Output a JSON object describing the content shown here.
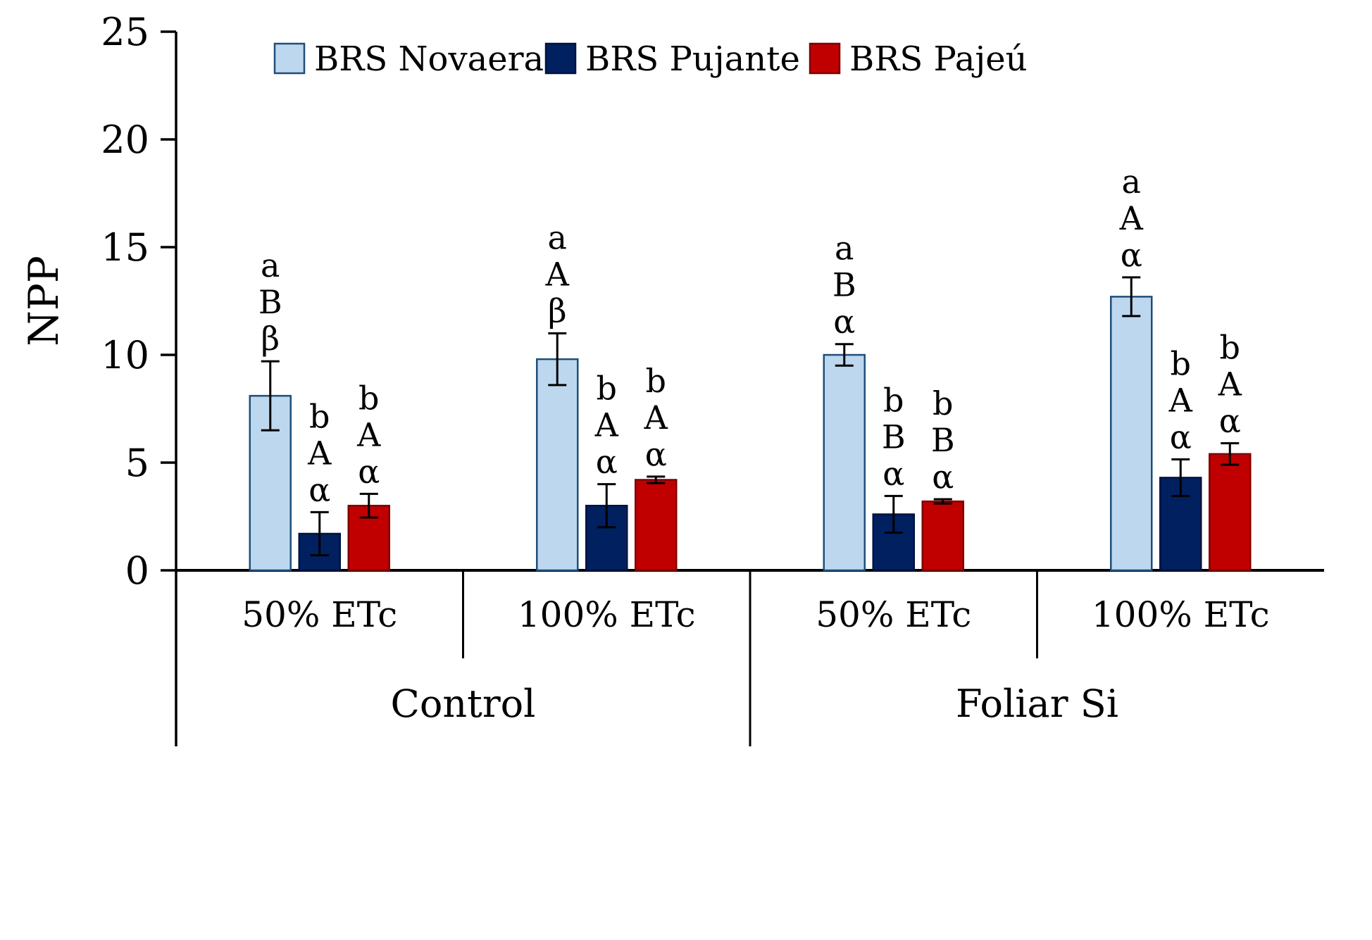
{
  "chart_data": {
    "type": "bar",
    "title": "",
    "ylabel": "NPP",
    "ylim": [
      0,
      25
    ],
    "yticks": [
      0,
      5,
      10,
      15,
      20,
      25
    ],
    "grid": false,
    "legend_position": "top",
    "group_labels": [
      "Control",
      "Foliar Si"
    ],
    "subgroup_labels": [
      "50% ETc",
      "100% ETc",
      "50% ETc",
      "100% ETc"
    ],
    "series": [
      {
        "name": "BRS Novaera",
        "color": "#BDD7EE",
        "border": "#1F4E79",
        "values": [
          8.1,
          9.8,
          10.0,
          12.7
        ],
        "errors": [
          1.6,
          1.2,
          0.5,
          0.9
        ],
        "letters": [
          [
            "a",
            "B",
            "β"
          ],
          [
            "a",
            "A",
            "β"
          ],
          [
            "a",
            "B",
            "α"
          ],
          [
            "a",
            "A",
            "α"
          ]
        ]
      },
      {
        "name": "BRS Pujante",
        "color": "#002060",
        "border": "#001240",
        "values": [
          1.7,
          3.0,
          2.6,
          4.3
        ],
        "errors": [
          1.0,
          1.0,
          0.85,
          0.85
        ],
        "letters": [
          [
            "b",
            "A",
            "α"
          ],
          [
            "b",
            "A",
            "α"
          ],
          [
            "b",
            "B",
            "α"
          ],
          [
            "b",
            "A",
            "α"
          ]
        ]
      },
      {
        "name": "BRS Pajeú",
        "color": "#C00000",
        "border": "#7F0000",
        "values": [
          3.0,
          4.2,
          3.2,
          5.4
        ],
        "errors": [
          0.55,
          0.15,
          0.1,
          0.5
        ],
        "letters": [
          [
            "b",
            "A",
            "α"
          ],
          [
            "b",
            "A",
            "α"
          ],
          [
            "b",
            "B",
            "α"
          ],
          [
            "b",
            "A",
            "α"
          ]
        ]
      }
    ],
    "axis_color": "#000000",
    "error_bar_color": "#000000"
  }
}
